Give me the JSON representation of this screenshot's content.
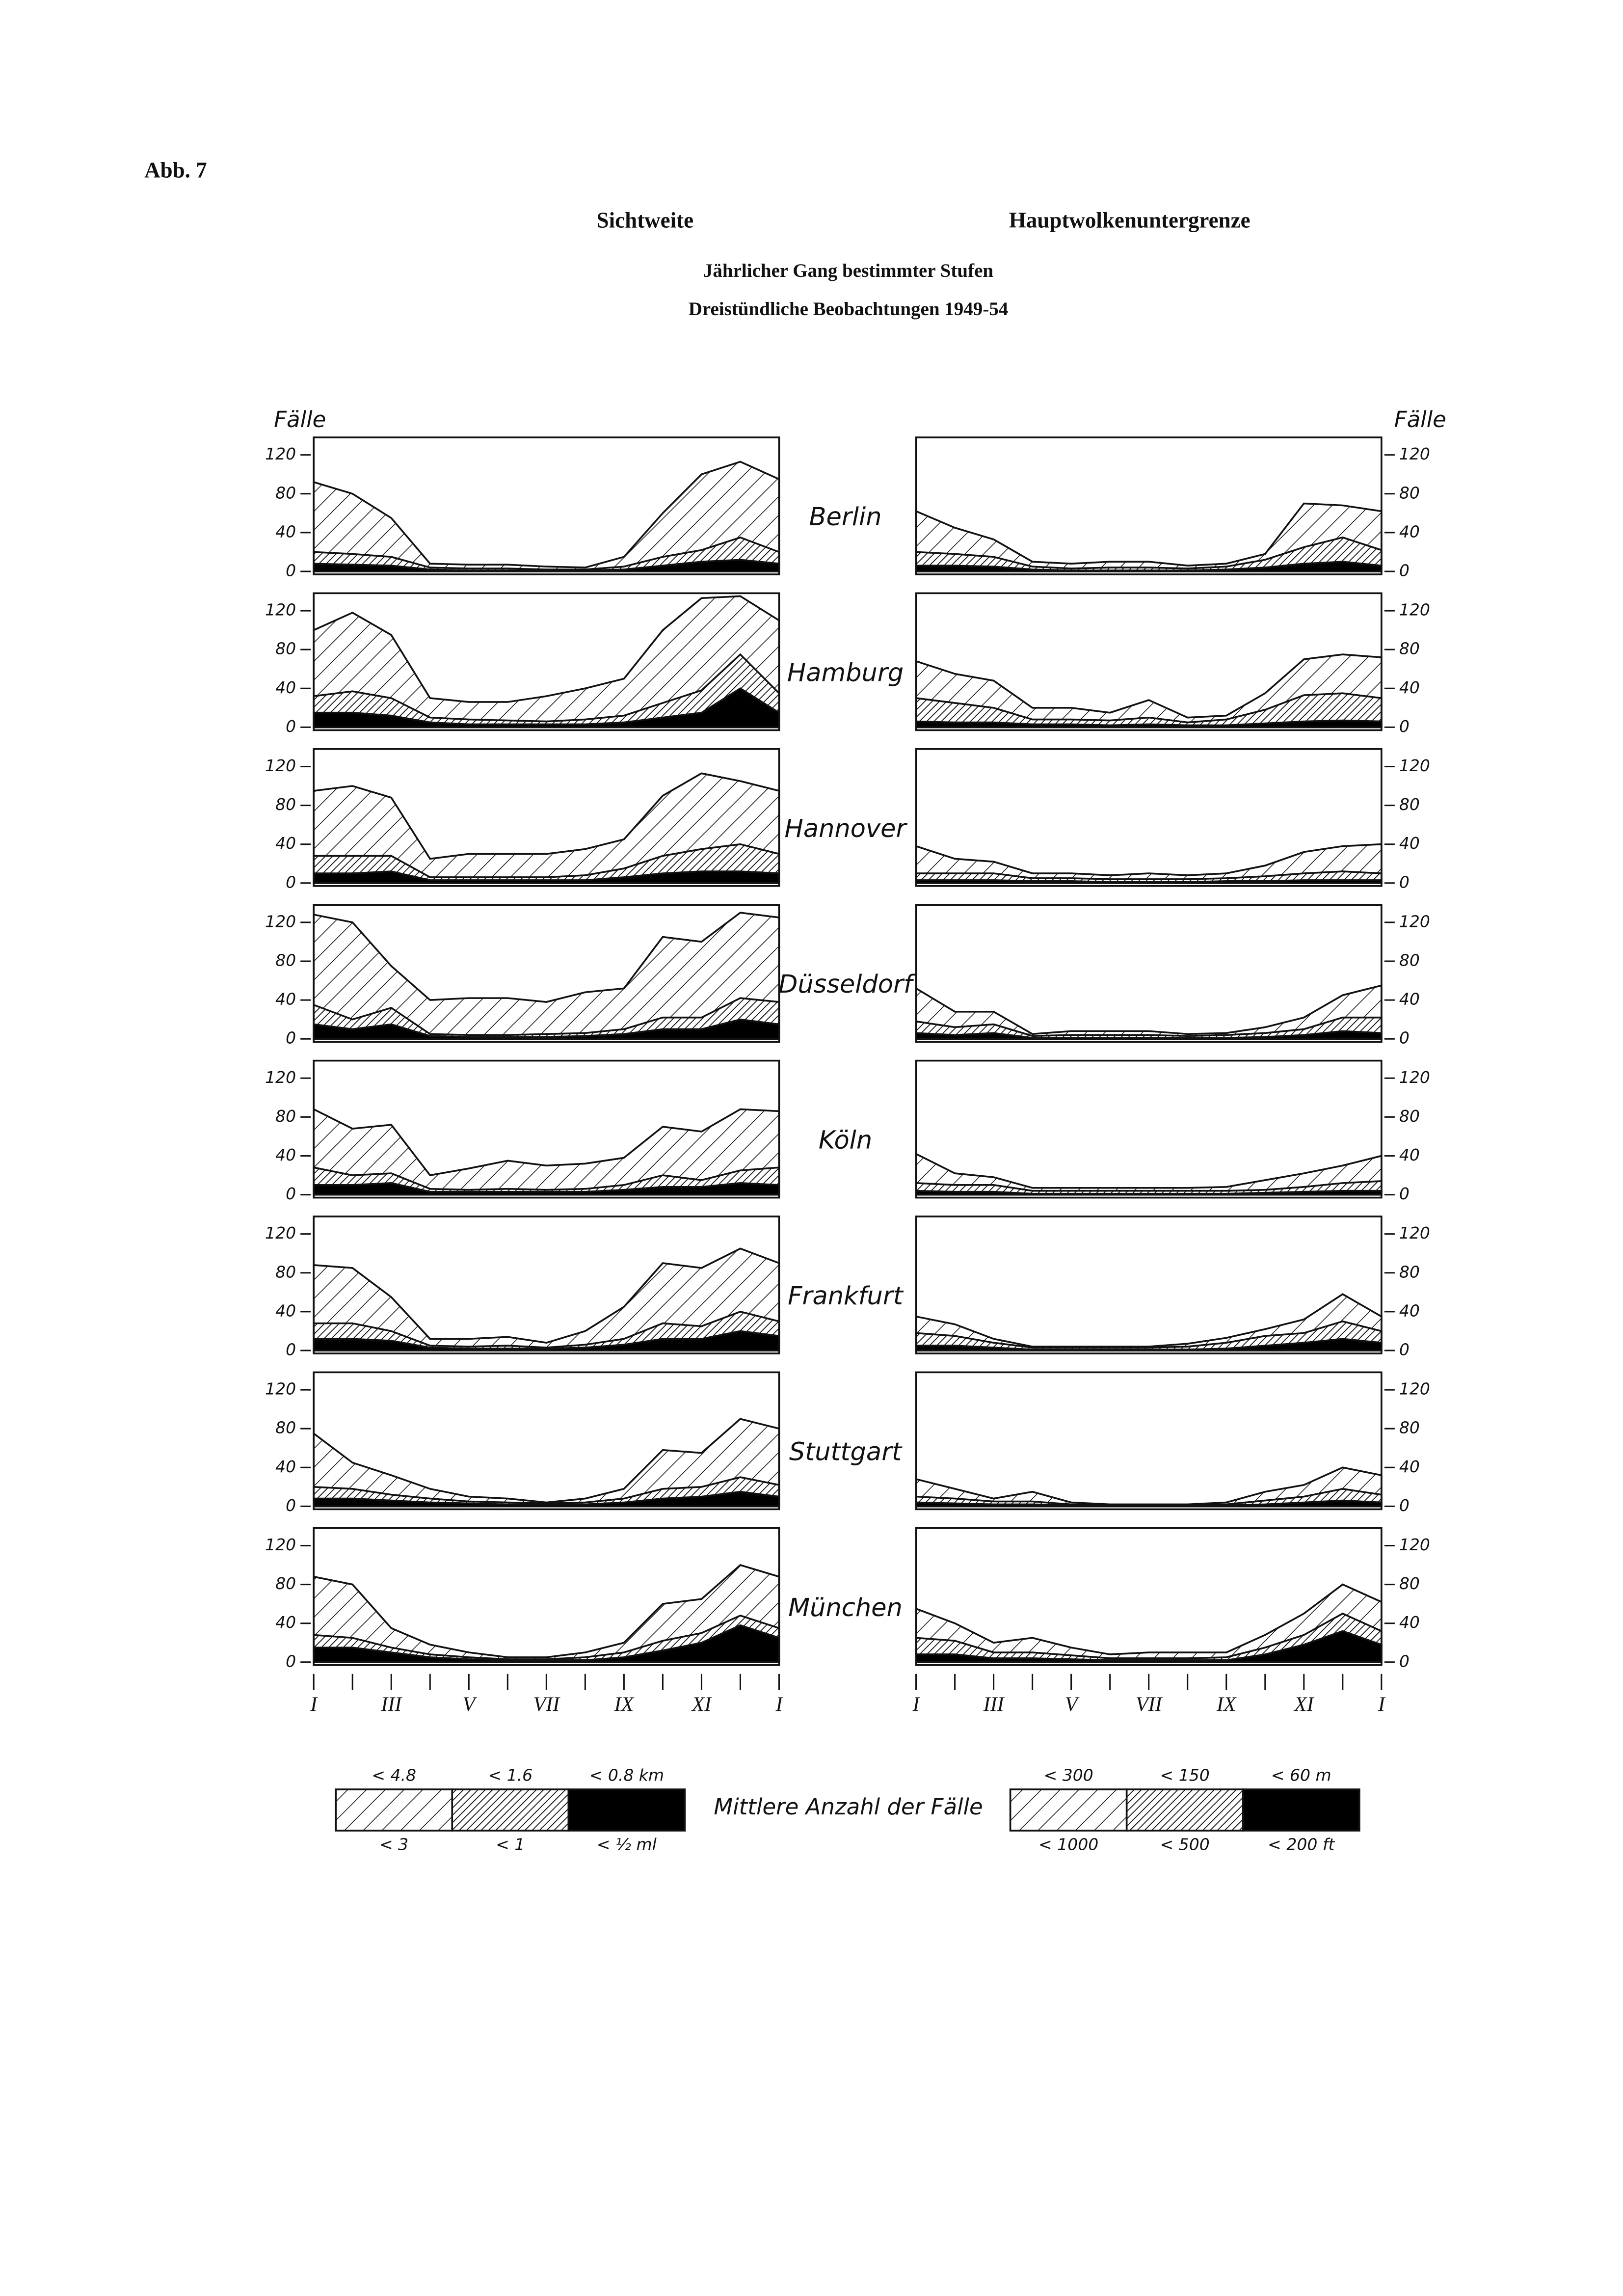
{
  "header": {
    "figure": "Abb. 7",
    "left_title": "Sichtweite",
    "right_title": "Hauptwolkenuntergrenze",
    "subtitle": "Jährlicher Gang bestimmter Stufen",
    "subtitle2": "Dreistündliche Beobachtungen 1949-54"
  },
  "chart_data": [
    {
      "type": "area",
      "title": "Berlin",
      "y_label": "Fälle",
      "ylim": [
        0,
        135
      ],
      "yticks": [
        0,
        40,
        80,
        120
      ],
      "series": [
        {
          "pattern": "wide",
          "values": [
            92,
            80,
            55,
            8,
            7,
            7,
            5,
            4,
            15,
            60,
            100,
            113,
            95
          ]
        },
        {
          "pattern": "dense",
          "values": [
            20,
            18,
            15,
            4,
            3,
            3,
            2,
            2,
            5,
            15,
            22,
            35,
            20
          ]
        },
        {
          "pattern": "solid",
          "values": [
            8,
            7,
            6,
            2,
            1,
            1,
            1,
            1,
            2,
            6,
            10,
            12,
            8
          ]
        }
      ]
    },
    {
      "type": "area",
      "y_label": "Fälle",
      "ylim": [
        0,
        135
      ],
      "yticks": [
        0,
        40,
        80,
        120
      ],
      "series": [
        {
          "pattern": "wide",
          "values": [
            62,
            45,
            33,
            10,
            8,
            10,
            10,
            6,
            8,
            18,
            70,
            68,
            62
          ]
        },
        {
          "pattern": "dense",
          "values": [
            20,
            18,
            15,
            5,
            3,
            4,
            4,
            3,
            5,
            12,
            25,
            35,
            22
          ]
        },
        {
          "pattern": "solid",
          "values": [
            6,
            6,
            5,
            2,
            1,
            1,
            1,
            1,
            2,
            4,
            8,
            10,
            6
          ]
        }
      ]
    },
    {
      "type": "area",
      "title": "Hamburg",
      "ylim": [
        0,
        135
      ],
      "yticks": [
        0,
        40,
        80,
        120
      ],
      "series": [
        {
          "pattern": "wide",
          "values": [
            100,
            118,
            95,
            30,
            26,
            26,
            32,
            40,
            50,
            100,
            133,
            135,
            110
          ]
        },
        {
          "pattern": "dense",
          "values": [
            32,
            37,
            30,
            10,
            8,
            7,
            6,
            8,
            12,
            25,
            38,
            75,
            35
          ]
        },
        {
          "pattern": "solid",
          "values": [
            15,
            15,
            12,
            5,
            3,
            3,
            3,
            3,
            5,
            10,
            15,
            40,
            15
          ]
        }
      ]
    },
    {
      "type": "area",
      "ylim": [
        0,
        135
      ],
      "yticks": [
        0,
        40,
        80,
        120
      ],
      "series": [
        {
          "pattern": "wide",
          "values": [
            68,
            55,
            48,
            20,
            20,
            15,
            28,
            10,
            12,
            35,
            70,
            75,
            72
          ]
        },
        {
          "pattern": "dense",
          "values": [
            30,
            25,
            20,
            8,
            8,
            7,
            10,
            5,
            8,
            18,
            33,
            35,
            30
          ]
        },
        {
          "pattern": "solid",
          "values": [
            6,
            5,
            5,
            3,
            3,
            2,
            3,
            2,
            2,
            4,
            6,
            7,
            6
          ]
        }
      ]
    },
    {
      "type": "area",
      "title": "Hannover",
      "ylim": [
        0,
        135
      ],
      "yticks": [
        0,
        40,
        80,
        120
      ],
      "series": [
        {
          "pattern": "wide",
          "values": [
            95,
            100,
            88,
            25,
            30,
            30,
            30,
            35,
            45,
            90,
            113,
            105,
            95
          ]
        },
        {
          "pattern": "dense",
          "values": [
            28,
            28,
            28,
            6,
            6,
            6,
            6,
            8,
            15,
            28,
            35,
            40,
            30
          ]
        },
        {
          "pattern": "solid",
          "values": [
            10,
            10,
            12,
            3,
            3,
            3,
            3,
            3,
            6,
            10,
            12,
            12,
            10
          ]
        }
      ]
    },
    {
      "type": "area",
      "ylim": [
        0,
        135
      ],
      "yticks": [
        0,
        40,
        80,
        120
      ],
      "series": [
        {
          "pattern": "wide",
          "values": [
            38,
            25,
            22,
            10,
            10,
            8,
            10,
            8,
            10,
            18,
            32,
            38,
            40
          ]
        },
        {
          "pattern": "dense",
          "values": [
            10,
            10,
            10,
            5,
            5,
            4,
            4,
            4,
            5,
            7,
            10,
            12,
            10
          ]
        },
        {
          "pattern": "solid",
          "values": [
            3,
            3,
            3,
            2,
            2,
            1,
            1,
            1,
            2,
            2,
            3,
            3,
            3
          ]
        }
      ]
    },
    {
      "type": "area",
      "title": "Düsseldorf",
      "ylim": [
        0,
        135
      ],
      "yticks": [
        0,
        40,
        80,
        120
      ],
      "series": [
        {
          "pattern": "wide",
          "values": [
            128,
            120,
            75,
            40,
            42,
            42,
            38,
            48,
            52,
            105,
            100,
            130,
            125
          ]
        },
        {
          "pattern": "dense",
          "values": [
            35,
            20,
            32,
            5,
            4,
            4,
            5,
            6,
            10,
            22,
            22,
            42,
            38
          ]
        },
        {
          "pattern": "solid",
          "values": [
            15,
            10,
            15,
            3,
            2,
            2,
            2,
            3,
            5,
            10,
            10,
            20,
            15
          ]
        }
      ]
    },
    {
      "type": "area",
      "ylim": [
        0,
        135
      ],
      "yticks": [
        0,
        40,
        80,
        120
      ],
      "series": [
        {
          "pattern": "wide",
          "values": [
            52,
            28,
            28,
            5,
            8,
            8,
            8,
            5,
            6,
            12,
            22,
            45,
            55
          ]
        },
        {
          "pattern": "dense",
          "values": [
            18,
            12,
            15,
            3,
            4,
            4,
            4,
            3,
            4,
            6,
            10,
            22,
            22
          ]
        },
        {
          "pattern": "solid",
          "values": [
            6,
            4,
            6,
            1,
            1,
            1,
            1,
            1,
            1,
            2,
            4,
            8,
            6
          ]
        }
      ]
    },
    {
      "type": "area",
      "title": "Köln",
      "ylim": [
        0,
        135
      ],
      "yticks": [
        0,
        40,
        80,
        120
      ],
      "series": [
        {
          "pattern": "wide",
          "values": [
            88,
            68,
            72,
            20,
            27,
            35,
            30,
            32,
            38,
            70,
            65,
            88,
            86
          ]
        },
        {
          "pattern": "dense",
          "values": [
            28,
            20,
            22,
            6,
            5,
            6,
            5,
            6,
            10,
            20,
            15,
            25,
            28
          ]
        },
        {
          "pattern": "solid",
          "values": [
            10,
            10,
            12,
            3,
            3,
            3,
            3,
            3,
            5,
            8,
            8,
            12,
            10
          ]
        }
      ]
    },
    {
      "type": "area",
      "ylim": [
        0,
        135
      ],
      "yticks": [
        0,
        40,
        80,
        120
      ],
      "series": [
        {
          "pattern": "wide",
          "values": [
            42,
            22,
            18,
            7,
            7,
            7,
            7,
            7,
            8,
            15,
            22,
            30,
            40
          ]
        },
        {
          "pattern": "dense",
          "values": [
            12,
            10,
            10,
            4,
            4,
            4,
            4,
            4,
            4,
            5,
            8,
            12,
            14
          ]
        },
        {
          "pattern": "solid",
          "values": [
            4,
            3,
            3,
            1,
            1,
            1,
            1,
            1,
            1,
            2,
            3,
            4,
            4
          ]
        }
      ]
    },
    {
      "type": "area",
      "title": "Frankfurt",
      "ylim": [
        0,
        135
      ],
      "yticks": [
        0,
        40,
        80,
        120
      ],
      "series": [
        {
          "pattern": "wide",
          "values": [
            88,
            85,
            55,
            12,
            12,
            14,
            8,
            20,
            45,
            90,
            85,
            105,
            90
          ]
        },
        {
          "pattern": "dense",
          "values": [
            28,
            28,
            20,
            5,
            4,
            5,
            3,
            6,
            12,
            28,
            25,
            40,
            30
          ]
        },
        {
          "pattern": "solid",
          "values": [
            12,
            12,
            10,
            3,
            2,
            2,
            2,
            3,
            6,
            12,
            12,
            20,
            15
          ]
        }
      ]
    },
    {
      "type": "area",
      "ylim": [
        0,
        135
      ],
      "yticks": [
        0,
        40,
        80,
        120
      ],
      "series": [
        {
          "pattern": "wide",
          "values": [
            35,
            27,
            12,
            4,
            4,
            4,
            4,
            7,
            13,
            22,
            32,
            58,
            35
          ]
        },
        {
          "pattern": "dense",
          "values": [
            18,
            15,
            8,
            3,
            3,
            3,
            3,
            4,
            8,
            15,
            18,
            30,
            20
          ]
        },
        {
          "pattern": "solid",
          "values": [
            5,
            5,
            3,
            1,
            1,
            1,
            1,
            1,
            2,
            5,
            8,
            12,
            8
          ]
        }
      ]
    },
    {
      "type": "area",
      "title": "Stuttgart",
      "ylim": [
        0,
        135
      ],
      "yticks": [
        0,
        40,
        80,
        120
      ],
      "series": [
        {
          "pattern": "wide",
          "values": [
            75,
            45,
            32,
            18,
            10,
            8,
            4,
            8,
            18,
            58,
            55,
            90,
            80
          ]
        },
        {
          "pattern": "dense",
          "values": [
            20,
            18,
            12,
            8,
            5,
            4,
            3,
            4,
            8,
            18,
            20,
            30,
            22
          ]
        },
        {
          "pattern": "solid",
          "values": [
            8,
            8,
            6,
            4,
            3,
            2,
            2,
            2,
            4,
            8,
            10,
            15,
            10
          ]
        }
      ]
    },
    {
      "type": "area",
      "ylim": [
        0,
        135
      ],
      "yticks": [
        0,
        40,
        80,
        120
      ],
      "series": [
        {
          "pattern": "wide",
          "values": [
            28,
            18,
            8,
            15,
            4,
            2,
            2,
            2,
            4,
            15,
            22,
            40,
            32
          ]
        },
        {
          "pattern": "dense",
          "values": [
            10,
            8,
            5,
            5,
            2,
            1,
            1,
            1,
            2,
            6,
            10,
            18,
            12
          ]
        },
        {
          "pattern": "solid",
          "values": [
            4,
            3,
            2,
            2,
            1,
            1,
            1,
            1,
            1,
            2,
            4,
            6,
            4
          ]
        }
      ]
    },
    {
      "type": "area",
      "title": "München",
      "ylim": [
        0,
        135
      ],
      "yticks": [
        0,
        40,
        80,
        120
      ],
      "categories": [
        "I",
        null,
        "III",
        null,
        "V",
        null,
        "VII",
        null,
        "IX",
        null,
        "XI",
        null,
        "I"
      ],
      "series": [
        {
          "pattern": "wide",
          "values": [
            88,
            80,
            35,
            18,
            10,
            5,
            5,
            10,
            20,
            60,
            65,
            100,
            88
          ]
        },
        {
          "pattern": "dense",
          "values": [
            28,
            25,
            15,
            8,
            5,
            3,
            3,
            5,
            10,
            22,
            30,
            48,
            35
          ]
        },
        {
          "pattern": "solid",
          "values": [
            15,
            15,
            10,
            5,
            3,
            2,
            2,
            2,
            5,
            12,
            20,
            38,
            25
          ]
        }
      ]
    },
    {
      "type": "area",
      "ylim": [
        0,
        135
      ],
      "yticks": [
        0,
        40,
        80,
        120
      ],
      "categories": [
        "I",
        null,
        "III",
        null,
        "V",
        null,
        "VII",
        null,
        "IX",
        null,
        "XI",
        null,
        "I"
      ],
      "series": [
        {
          "pattern": "wide",
          "values": [
            55,
            40,
            20,
            25,
            15,
            8,
            10,
            10,
            10,
            28,
            50,
            80,
            62
          ]
        },
        {
          "pattern": "dense",
          "values": [
            25,
            22,
            10,
            10,
            7,
            4,
            4,
            4,
            5,
            15,
            28,
            50,
            32
          ]
        },
        {
          "pattern": "solid",
          "values": [
            8,
            8,
            4,
            4,
            3,
            2,
            2,
            2,
            2,
            8,
            18,
            32,
            18
          ]
        }
      ]
    }
  ],
  "legend": {
    "caption": "Mittlere Anzahl der Fälle",
    "groups": [
      {
        "items": [
          {
            "label": "< 4.8",
            "label2": "< 3",
            "pattern": "wide"
          },
          {
            "label": "< 1.6",
            "label2": "< 1",
            "pattern": "dense"
          },
          {
            "label": "< 0.8 km",
            "label2": "< ½ ml",
            "pattern": "solid"
          }
        ]
      },
      {
        "items": [
          {
            "label": "< 300",
            "label2": "< 1000",
            "pattern": "wide"
          },
          {
            "label": "< 150",
            "label2": "< 500",
            "pattern": "dense"
          },
          {
            "label": "< 60 m",
            "label2": "< 200 ft",
            "pattern": "solid"
          }
        ]
      }
    ]
  }
}
